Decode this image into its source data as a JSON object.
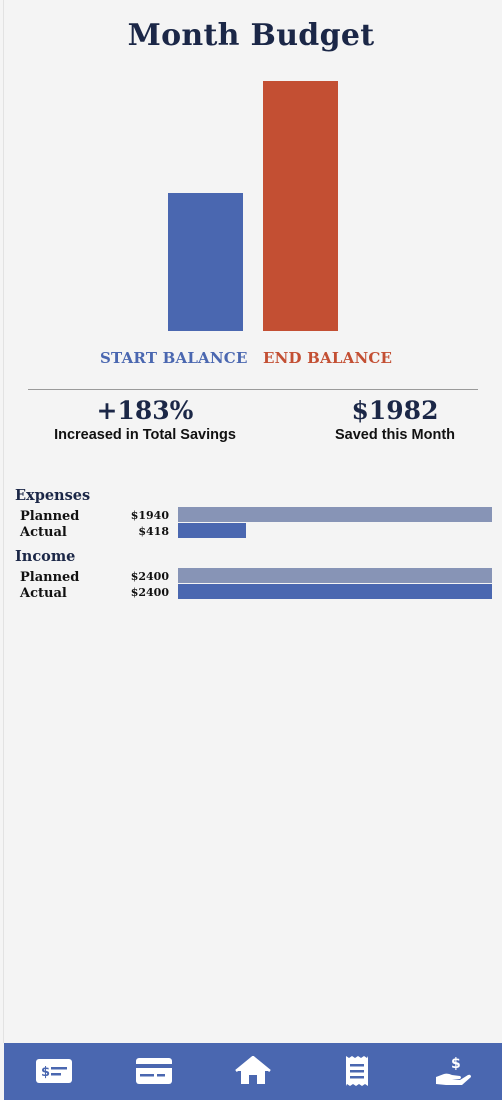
{
  "page": {
    "title": "Month Budget"
  },
  "balance_chart": {
    "start": {
      "label": "START BALANCE",
      "color": "#4a67b0",
      "value_ratio": 0.55
    },
    "end": {
      "label": "END BALANCE",
      "color": "#c34f33",
      "value_ratio": 1.0
    }
  },
  "stats": {
    "savings_pct": {
      "value": "+183%",
      "label": "Increased in Total Savings"
    },
    "saved": {
      "value": "$1982",
      "label": "Saved this Month"
    }
  },
  "expenses": {
    "title": "Expenses",
    "planned": {
      "label": "Planned",
      "amount": "$1940",
      "fraction": 1.0
    },
    "actual": {
      "label": "Actual",
      "amount": "$418",
      "fraction": 0.215
    }
  },
  "income": {
    "title": "Income",
    "planned": {
      "label": "Planned",
      "amount": "$2400",
      "fraction": 1.0
    },
    "actual": {
      "label": "Actual",
      "amount": "$2400",
      "fraction": 1.0
    }
  },
  "nav": {
    "items": [
      {
        "icon": "bill-icon"
      },
      {
        "icon": "credit-card-icon"
      },
      {
        "icon": "home-icon"
      },
      {
        "icon": "receipt-icon"
      },
      {
        "icon": "hand-money-icon"
      }
    ]
  }
}
